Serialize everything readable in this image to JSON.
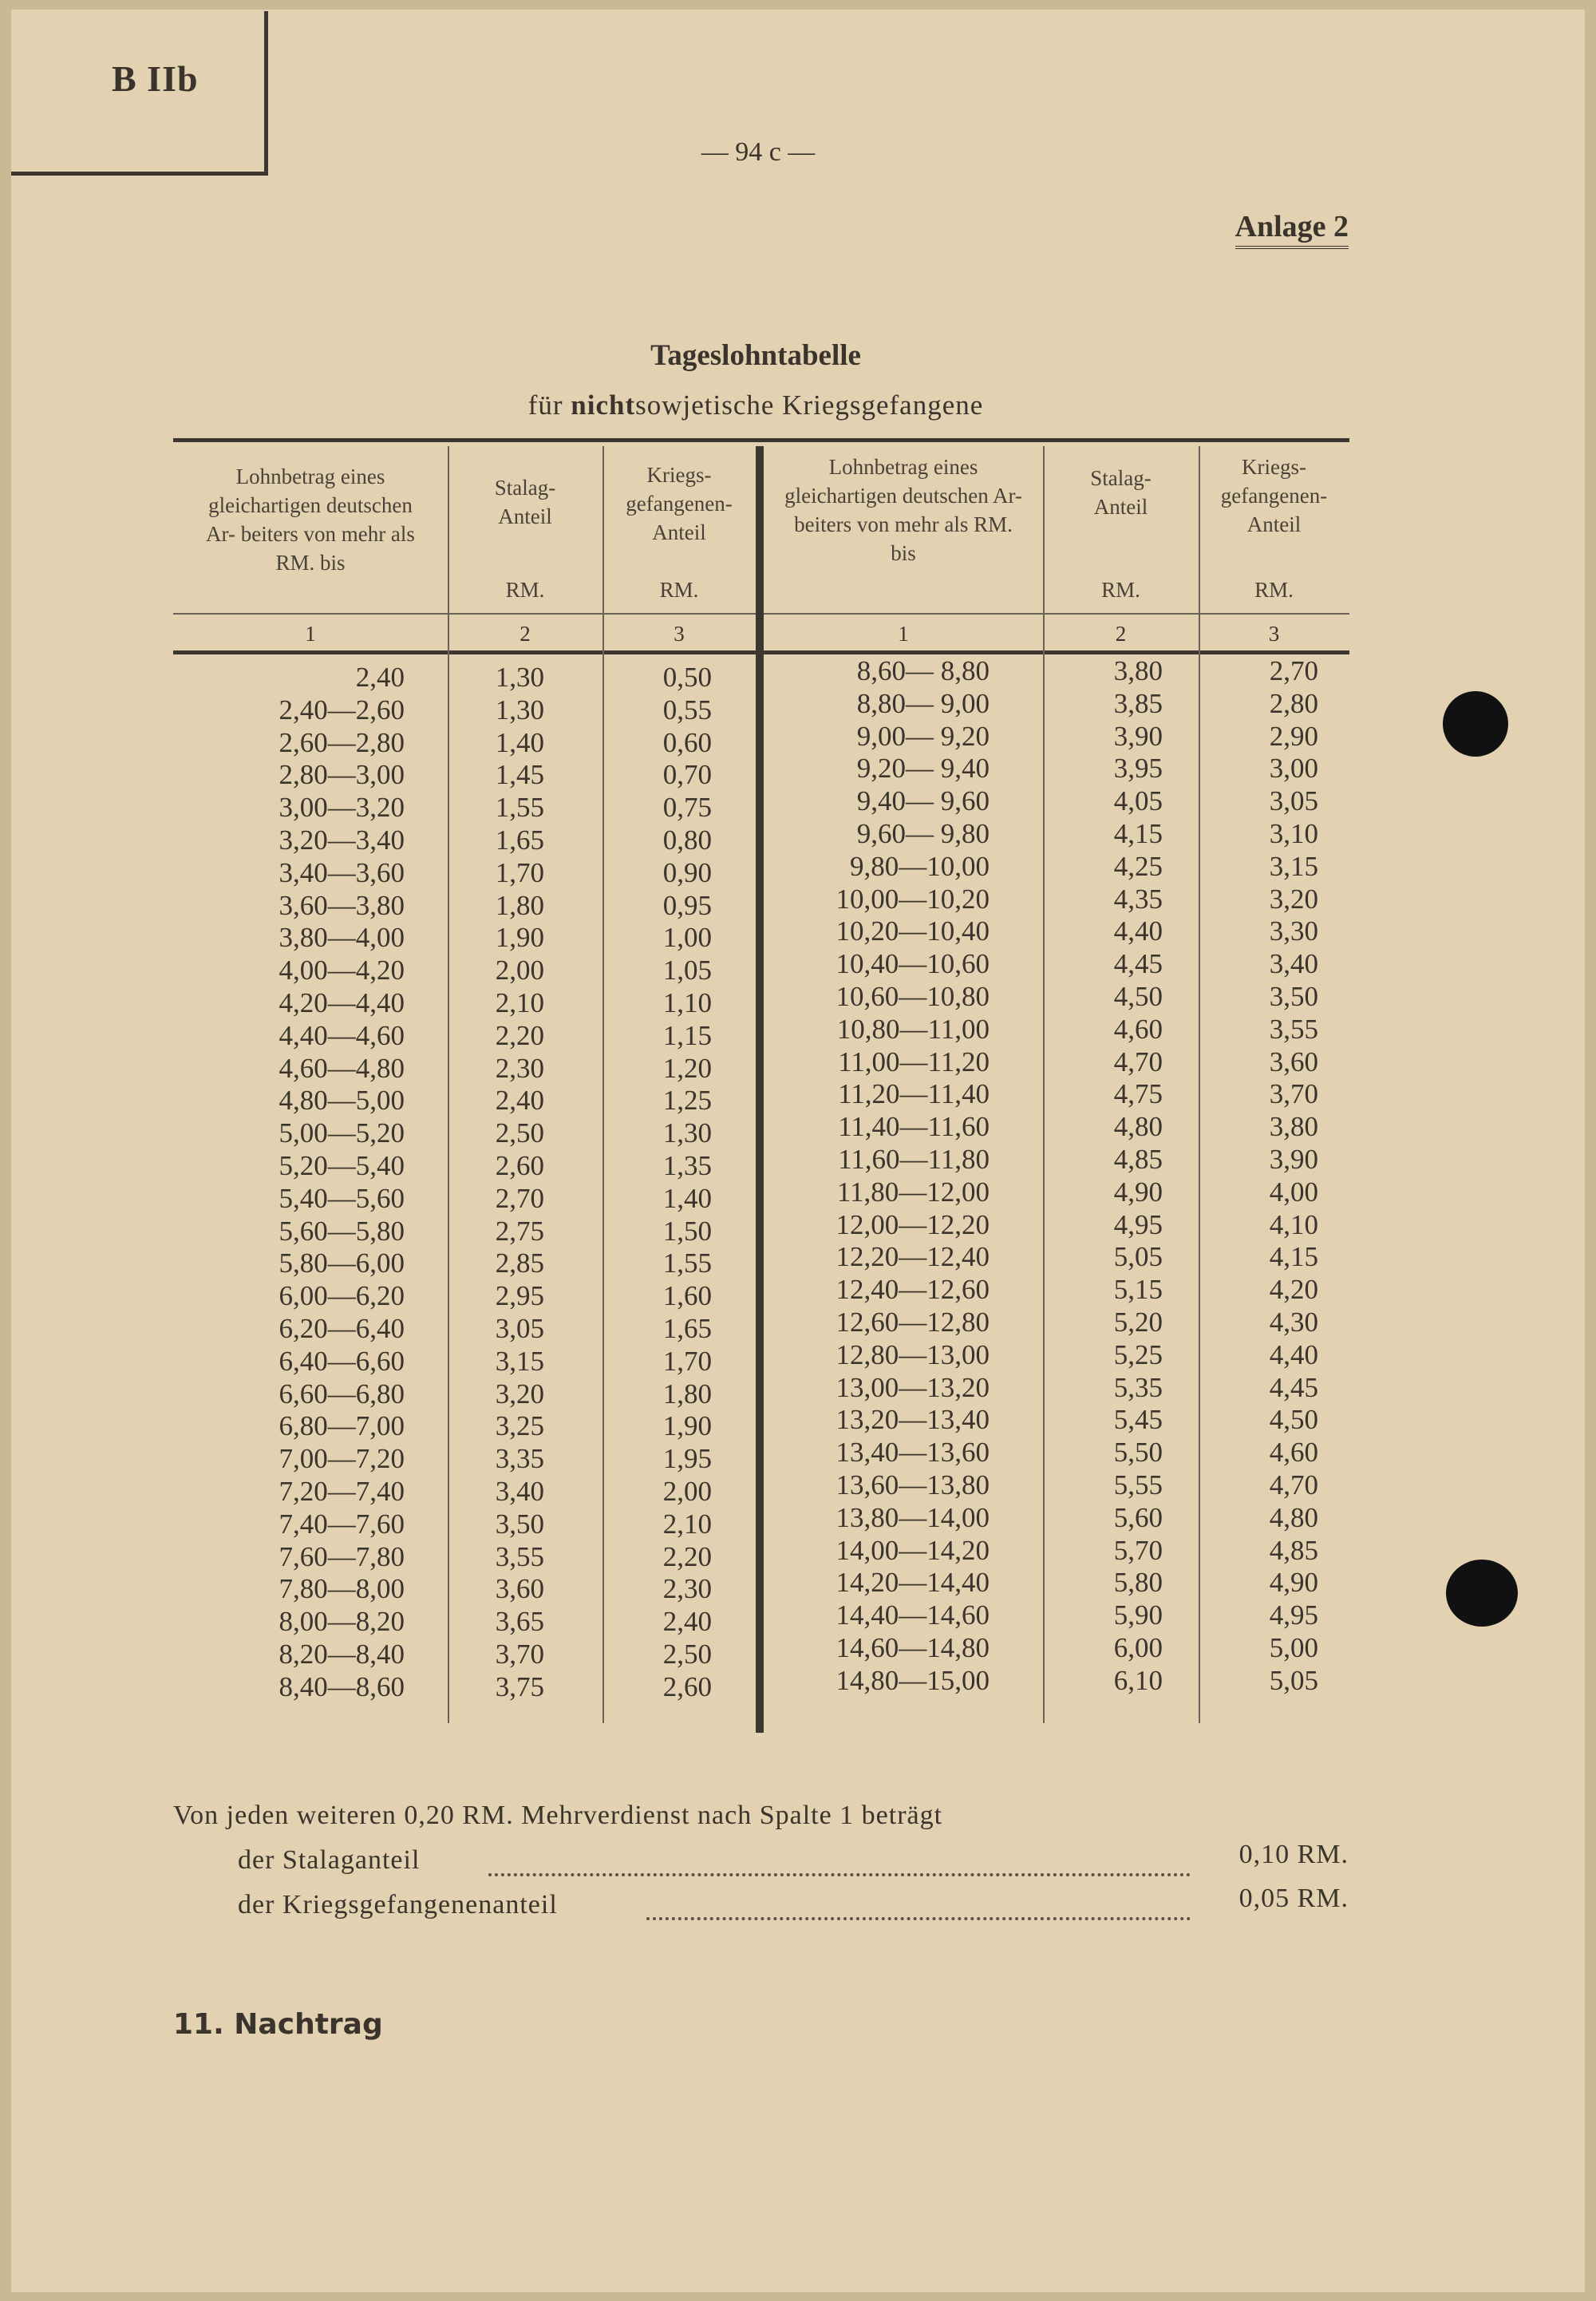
{
  "corner_label": "B IIb",
  "page_number": "— 94 c —",
  "annex": "Anlage 2",
  "title": "Tageslohntabelle",
  "subtitle": {
    "prefix": "für ",
    "bold": "nicht",
    "suffix": "sowjetische Kriegsgefangene"
  },
  "table": {
    "headers": [
      {
        "text": "Lohnbetrag eines gleichartigen deutschen Ar- beiters von mehr als RM. bis",
        "unit": "",
        "number": "1"
      },
      {
        "text": "Stalag- Anteil",
        "unit": "RM.",
        "number": "2"
      },
      {
        "text": "Kriegs- gefangenen- Anteil",
        "unit": "RM.",
        "number": "3"
      },
      {
        "text": "Lohnbetrag eines gleichartigen deutschen Ar- beiters von mehr als RM. bis",
        "unit": "",
        "number": "1"
      },
      {
        "text": "Stalag- Anteil",
        "unit": "RM.",
        "number": "2"
      },
      {
        "text": "Kriegs- gefangenen- Anteil",
        "unit": "RM.",
        "number": "3"
      }
    ],
    "left_rows": [
      [
        "2,40",
        "1,30",
        "0,50"
      ],
      [
        "2,40—2,60",
        "1,30",
        "0,55"
      ],
      [
        "2,60—2,80",
        "1,40",
        "0,60"
      ],
      [
        "2,80—3,00",
        "1,45",
        "0,70"
      ],
      [
        "3,00—3,20",
        "1,55",
        "0,75"
      ],
      [
        "3,20—3,40",
        "1,65",
        "0,80"
      ],
      [
        "3,40—3,60",
        "1,70",
        "0,90"
      ],
      [
        "3,60—3,80",
        "1,80",
        "0,95"
      ],
      [
        "3,80—4,00",
        "1,90",
        "1,00"
      ],
      [
        "4,00—4,20",
        "2,00",
        "1,05"
      ],
      [
        "4,20—4,40",
        "2,10",
        "1,10"
      ],
      [
        "4,40—4,60",
        "2,20",
        "1,15"
      ],
      [
        "4,60—4,80",
        "2,30",
        "1,20"
      ],
      [
        "4,80—5,00",
        "2,40",
        "1,25"
      ],
      [
        "5,00—5,20",
        "2,50",
        "1,30"
      ],
      [
        "5,20—5,40",
        "2,60",
        "1,35"
      ],
      [
        "5,40—5,60",
        "2,70",
        "1,40"
      ],
      [
        "5,60—5,80",
        "2,75",
        "1,50"
      ],
      [
        "5,80—6,00",
        "2,85",
        "1,55"
      ],
      [
        "6,00—6,20",
        "2,95",
        "1,60"
      ],
      [
        "6,20—6,40",
        "3,05",
        "1,65"
      ],
      [
        "6,40—6,60",
        "3,15",
        "1,70"
      ],
      [
        "6,60—6,80",
        "3,20",
        "1,80"
      ],
      [
        "6,80—7,00",
        "3,25",
        "1,90"
      ],
      [
        "7,00—7,20",
        "3,35",
        "1,95"
      ],
      [
        "7,20—7,40",
        "3,40",
        "2,00"
      ],
      [
        "7,40—7,60",
        "3,50",
        "2,10"
      ],
      [
        "7,60—7,80",
        "3,55",
        "2,20"
      ],
      [
        "7,80—8,00",
        "3,60",
        "2,30"
      ],
      [
        "8,00—8,20",
        "3,65",
        "2,40"
      ],
      [
        "8,20—8,40",
        "3,70",
        "2,50"
      ],
      [
        "8,40—8,60",
        "3,75",
        "2,60"
      ]
    ],
    "right_rows": [
      [
        "8,60— 8,80",
        "3,80",
        "2,70"
      ],
      [
        "8,80— 9,00",
        "3,85",
        "2,80"
      ],
      [
        "9,00— 9,20",
        "3,90",
        "2,90"
      ],
      [
        "9,20— 9,40",
        "3,95",
        "3,00"
      ],
      [
        "9,40— 9,60",
        "4,05",
        "3,05"
      ],
      [
        "9,60— 9,80",
        "4,15",
        "3,10"
      ],
      [
        "9,80—10,00",
        "4,25",
        "3,15"
      ],
      [
        "10,00—10,20",
        "4,35",
        "3,20"
      ],
      [
        "10,20—10,40",
        "4,40",
        "3,30"
      ],
      [
        "10,40—10,60",
        "4,45",
        "3,40"
      ],
      [
        "10,60—10,80",
        "4,50",
        "3,50"
      ],
      [
        "10,80—11,00",
        "4,60",
        "3,55"
      ],
      [
        "11,00—11,20",
        "4,70",
        "3,60"
      ],
      [
        "11,20—11,40",
        "4,75",
        "3,70"
      ],
      [
        "11,40—11,60",
        "4,80",
        "3,80"
      ],
      [
        "11,60—11,80",
        "4,85",
        "3,90"
      ],
      [
        "11,80—12,00",
        "4,90",
        "4,00"
      ],
      [
        "12,00—12,20",
        "4,95",
        "4,10"
      ],
      [
        "12,20—12,40",
        "5,05",
        "4,15"
      ],
      [
        "12,40—12,60",
        "5,15",
        "4,20"
      ],
      [
        "12,60—12,80",
        "5,20",
        "4,30"
      ],
      [
        "12,80—13,00",
        "5,25",
        "4,40"
      ],
      [
        "13,00—13,20",
        "5,35",
        "4,45"
      ],
      [
        "13,20—13,40",
        "5,45",
        "4,50"
      ],
      [
        "13,40—13,60",
        "5,50",
        "4,60"
      ],
      [
        "13,60—13,80",
        "5,55",
        "4,70"
      ],
      [
        "13,80—14,00",
        "5,60",
        "4,80"
      ],
      [
        "14,00—14,20",
        "5,70",
        "4,85"
      ],
      [
        "14,20—14,40",
        "5,80",
        "4,90"
      ],
      [
        "14,40—14,60",
        "5,90",
        "4,95"
      ],
      [
        "14,60—14,80",
        "6,00",
        "5,00"
      ],
      [
        "14,80—15,00",
        "6,10",
        "5,05"
      ]
    ]
  },
  "footer": {
    "intro": "Von jeden weiteren 0,20 RM. Mehrverdienst nach Spalte 1 beträgt",
    "stalag_label": "der Stalaganteil",
    "stalag_value": "0,10 RM.",
    "pow_label": "der Kriegsgefangenenanteil",
    "pow_value": "0,05 RM."
  },
  "supplement": "11. Nachtrag"
}
